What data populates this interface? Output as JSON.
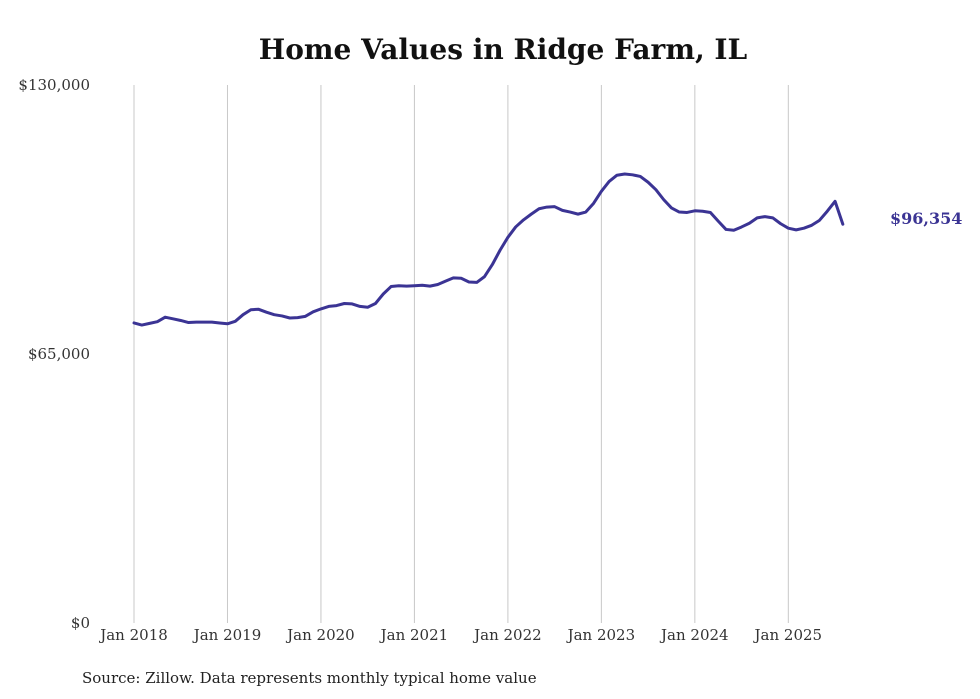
{
  "chart_data": {
    "type": "line",
    "title": "Home Values in Ridge Farm, IL",
    "xlabel": "",
    "ylabel": "",
    "ylim": [
      0,
      130000
    ],
    "yticks": [
      0,
      65000,
      130000
    ],
    "ytick_labels": [
      "$0",
      "$65,000",
      "$130,000"
    ],
    "xtick_labels": [
      "Jan 2018",
      "Jan 2019",
      "Jan 2020",
      "Jan 2021",
      "Jan 2022",
      "Jan 2023",
      "Jan 2024",
      "Jan 2025"
    ],
    "xtick_months": [
      0,
      12,
      24,
      36,
      48,
      60,
      72,
      84
    ],
    "xlim_months": [
      0,
      95
    ],
    "grid": "vertical",
    "series": [
      {
        "name": "Typical home value",
        "color": "#3b3494",
        "start": "Jan 2018",
        "values": [
          72500,
          72000,
          72400,
          72800,
          73900,
          73500,
          73100,
          72600,
          72700,
          72700,
          72700,
          72500,
          72300,
          72900,
          74500,
          75700,
          75800,
          75100,
          74500,
          74200,
          73700,
          73800,
          74100,
          75200,
          75900,
          76500,
          76700,
          77200,
          77100,
          76500,
          76300,
          77200,
          79500,
          81300,
          81500,
          81400,
          81500,
          81600,
          81400,
          81800,
          82600,
          83400,
          83300,
          82400,
          82300,
          83700,
          86600,
          90100,
          93200,
          95700,
          97400,
          98800,
          100100,
          100500,
          100600,
          99700,
          99300,
          98800,
          99300,
          101400,
          104300,
          106700,
          108200,
          108500,
          108300,
          107900,
          106500,
          104700,
          102300,
          100300,
          99300,
          99200,
          99600,
          99500,
          99200,
          97100,
          95100,
          94900,
          95700,
          96600,
          97900,
          98200,
          97900,
          96500,
          95400,
          95000,
          95400,
          96100,
          97300,
          99500,
          101900,
          96354
        ]
      }
    ],
    "end_label": "$96,354",
    "source": "Source: Zillow. Data represents monthly typical home value"
  }
}
